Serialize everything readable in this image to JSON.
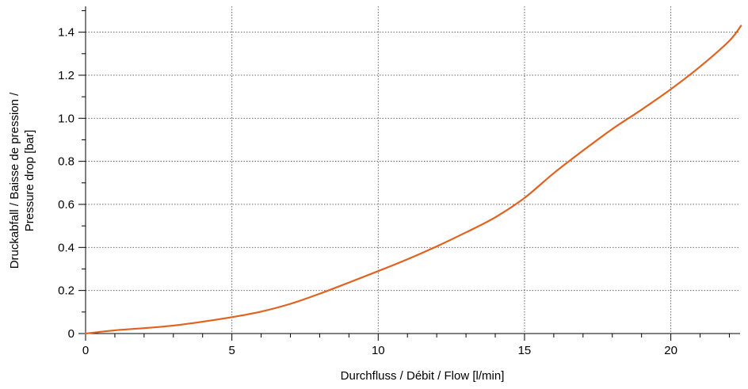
{
  "chart_data": {
    "type": "line",
    "title": "",
    "xlabel": "Durchfluss / Débit / Flow [l/min]",
    "ylabel_lines": [
      "Druckabfall / Baisse de pression /",
      "Pressure drop [bar]"
    ],
    "xlim": [
      0,
      22.8
    ],
    "ylim": [
      0,
      1.52
    ],
    "x_ticks": [
      0,
      5,
      10,
      15,
      20
    ],
    "x_tick_labels": [
      "0",
      "5",
      "10",
      "15",
      "20"
    ],
    "x_minor_step": 1,
    "y_ticks": [
      0,
      0.2,
      0.4,
      0.6,
      0.8,
      1.0,
      1.2,
      1.4
    ],
    "y_tick_labels": [
      "0",
      "0.2",
      "0.4",
      "0.6",
      "0.8",
      "1.0",
      "1.2",
      "1.4"
    ],
    "y_minor_step": 0.1,
    "grid": true,
    "legend": "none",
    "series": [
      {
        "color": "#e1621e",
        "x": [
          0,
          1,
          2,
          3,
          4,
          5,
          6,
          7,
          8,
          9,
          10,
          11,
          12,
          13,
          14,
          15,
          16,
          17,
          18,
          19,
          20,
          21,
          22,
          22.4
        ],
        "y": [
          0.0,
          0.015,
          0.025,
          0.037,
          0.055,
          0.076,
          0.102,
          0.138,
          0.185,
          0.237,
          0.29,
          0.345,
          0.405,
          0.47,
          0.54,
          0.63,
          0.745,
          0.85,
          0.95,
          1.04,
          1.135,
          1.24,
          1.36,
          1.43
        ]
      }
    ]
  }
}
